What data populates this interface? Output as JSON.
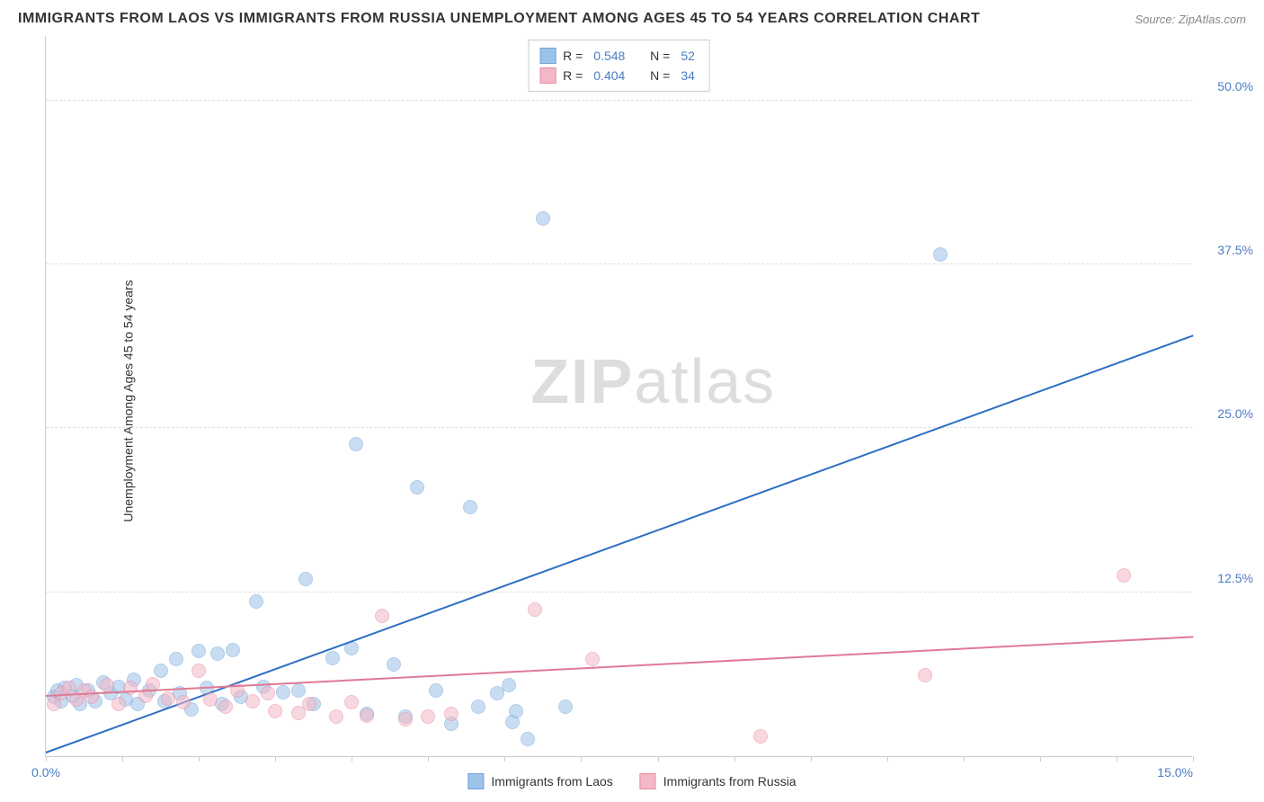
{
  "title": "IMMIGRANTS FROM LAOS VS IMMIGRANTS FROM RUSSIA UNEMPLOYMENT AMONG AGES 45 TO 54 YEARS CORRELATION CHART",
  "source": "Source: ZipAtlas.com",
  "ylabel": "Unemployment Among Ages 45 to 54 years",
  "watermark_prefix": "ZIP",
  "watermark_suffix": "atlas",
  "chart": {
    "type": "scatter",
    "xlim": [
      0,
      15
    ],
    "ylim": [
      0,
      55
    ],
    "xtick_labels": {
      "0": "0.0%",
      "15": "15.0%"
    },
    "xtick_positions": [
      0,
      1,
      2,
      3,
      4,
      5,
      6,
      7,
      8,
      9,
      10,
      11,
      12,
      13,
      14,
      15
    ],
    "ytick_labels": {
      "12.5": "12.5%",
      "25": "25.0%",
      "37.5": "37.5%",
      "50": "50.0%"
    },
    "grid_y": [
      12.5,
      25,
      37.5,
      50
    ],
    "background_color": "#ffffff",
    "grid_color": "#dddddd",
    "axis_color": "#cccccc",
    "label_color": "#4a7ec4",
    "text_color": "#333333",
    "marker_radius": 8,
    "marker_opacity": 0.55,
    "trend_width": 2
  },
  "series": [
    {
      "name": "Immigrants from Laos",
      "fill_color": "#9ec3e8",
      "stroke_color": "#6fa3d8",
      "line_color": "#2e6fc4",
      "R": "0.548",
      "N": "52",
      "trend": {
        "x1": 0,
        "y1": 0.2,
        "x2": 15,
        "y2": 32
      },
      "points": [
        [
          0.1,
          4.5
        ],
        [
          0.15,
          5.0
        ],
        [
          0.2,
          4.2
        ],
        [
          0.25,
          5.2
        ],
        [
          0.35,
          4.6
        ],
        [
          0.4,
          5.4
        ],
        [
          0.45,
          4.0
        ],
        [
          0.55,
          5.0
        ],
        [
          0.65,
          4.2
        ],
        [
          0.75,
          5.6
        ],
        [
          0.85,
          4.8
        ],
        [
          0.95,
          5.3
        ],
        [
          1.05,
          4.3
        ],
        [
          1.15,
          5.8
        ],
        [
          1.2,
          4.0
        ],
        [
          1.35,
          5.0
        ],
        [
          1.5,
          6.5
        ],
        [
          1.55,
          4.2
        ],
        [
          1.7,
          7.4
        ],
        [
          1.75,
          4.8
        ],
        [
          1.9,
          3.6
        ],
        [
          2.0,
          8.0
        ],
        [
          2.1,
          5.2
        ],
        [
          2.25,
          7.8
        ],
        [
          2.3,
          4.0
        ],
        [
          2.45,
          8.1
        ],
        [
          2.55,
          4.5
        ],
        [
          2.75,
          11.8
        ],
        [
          2.85,
          5.3
        ],
        [
          3.1,
          4.9
        ],
        [
          3.3,
          5.0
        ],
        [
          3.4,
          13.5
        ],
        [
          3.5,
          4.0
        ],
        [
          3.75,
          7.5
        ],
        [
          4.0,
          8.2
        ],
        [
          4.05,
          23.8
        ],
        [
          4.2,
          3.2
        ],
        [
          4.55,
          7.0
        ],
        [
          4.7,
          3.0
        ],
        [
          4.85,
          20.5
        ],
        [
          5.1,
          5.0
        ],
        [
          5.3,
          2.5
        ],
        [
          5.55,
          19.0
        ],
        [
          5.65,
          3.8
        ],
        [
          5.9,
          4.8
        ],
        [
          6.05,
          5.4
        ],
        [
          6.1,
          2.6
        ],
        [
          6.15,
          3.4
        ],
        [
          6.3,
          1.3
        ],
        [
          6.5,
          41.0
        ],
        [
          6.8,
          3.8
        ],
        [
          11.7,
          38.3
        ]
      ]
    },
    {
      "name": "Immigrants from Russia",
      "fill_color": "#f3b8c6",
      "stroke_color": "#e88aa2",
      "line_color": "#e07a95",
      "R": "0.404",
      "N": "34",
      "trend": {
        "x1": 0,
        "y1": 4.5,
        "x2": 15,
        "y2": 9.0
      },
      "points": [
        [
          0.1,
          4.0
        ],
        [
          0.2,
          4.8
        ],
        [
          0.3,
          5.2
        ],
        [
          0.4,
          4.3
        ],
        [
          0.5,
          5.0
        ],
        [
          0.6,
          4.5
        ],
        [
          0.8,
          5.4
        ],
        [
          0.95,
          4.0
        ],
        [
          1.1,
          5.2
        ],
        [
          1.3,
          4.6
        ],
        [
          1.4,
          5.5
        ],
        [
          1.6,
          4.4
        ],
        [
          1.8,
          4.1
        ],
        [
          2.0,
          6.5
        ],
        [
          2.15,
          4.3
        ],
        [
          2.35,
          3.8
        ],
        [
          2.5,
          5.0
        ],
        [
          2.7,
          4.2
        ],
        [
          2.9,
          4.8
        ],
        [
          3.0,
          3.4
        ],
        [
          3.3,
          3.3
        ],
        [
          3.45,
          4.0
        ],
        [
          3.8,
          3.0
        ],
        [
          4.0,
          4.1
        ],
        [
          4.2,
          3.1
        ],
        [
          4.4,
          10.7
        ],
        [
          4.7,
          2.8
        ],
        [
          5.0,
          3.0
        ],
        [
          5.3,
          3.2
        ],
        [
          6.4,
          11.2
        ],
        [
          7.15,
          7.4
        ],
        [
          9.35,
          1.5
        ],
        [
          11.5,
          6.2
        ],
        [
          14.1,
          13.8
        ]
      ]
    }
  ],
  "legend_top": {
    "r_label": "R =",
    "n_label": "N ="
  },
  "legend_bottom_labels": [
    "Immigrants from Laos",
    "Immigrants from Russia"
  ]
}
